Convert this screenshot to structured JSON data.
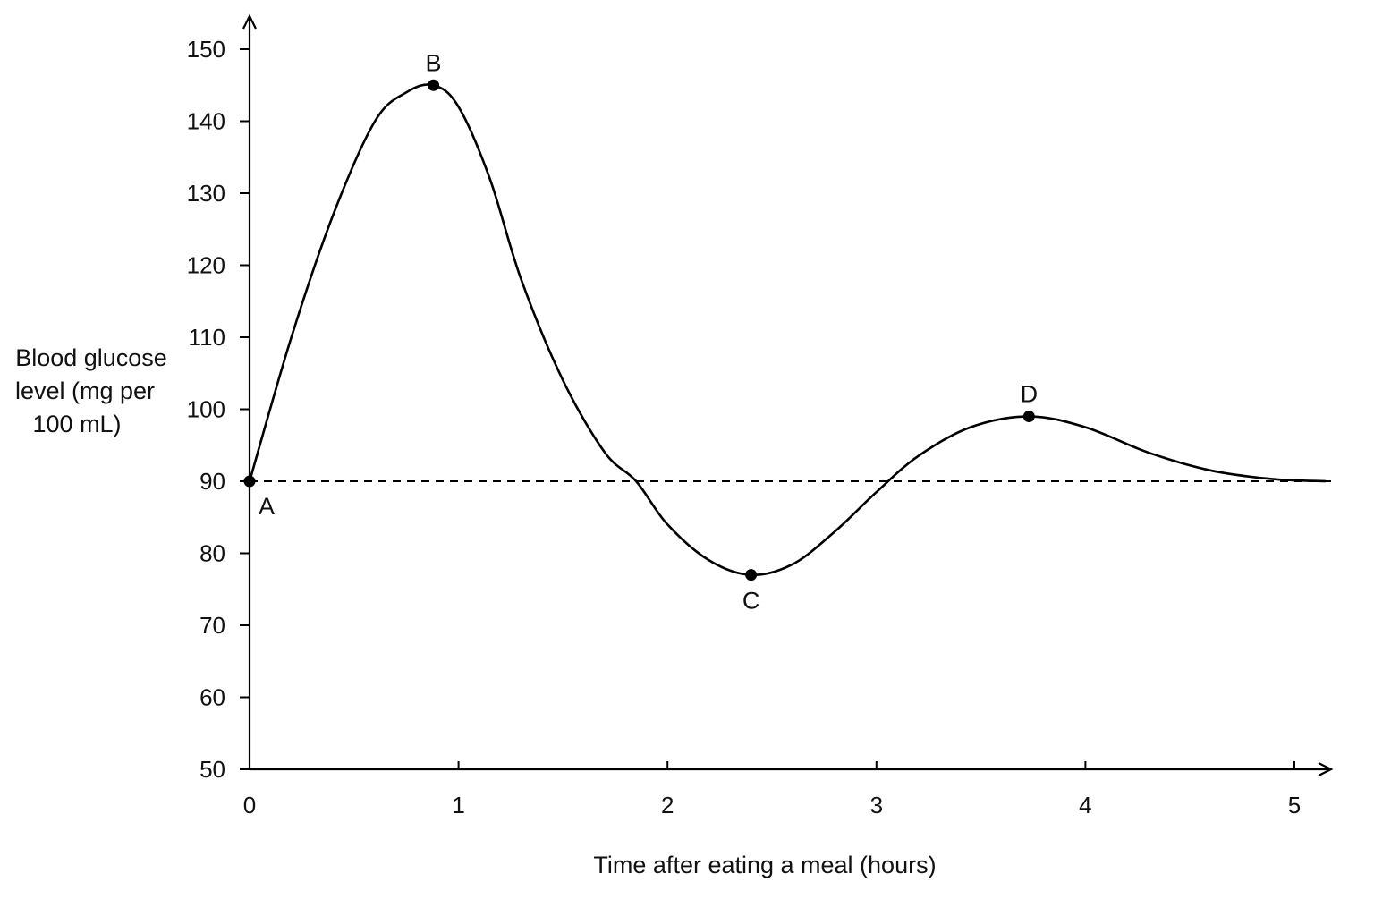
{
  "chart_data": {
    "type": "line",
    "title": "",
    "xlabel": "Time after eating a meal (hours)",
    "ylabel_lines": [
      "Blood glucose",
      "level (mg per",
      "100 mL)"
    ],
    "xlim": [
      0,
      5.15
    ],
    "ylim": [
      50,
      150
    ],
    "x_ticks": [
      "0",
      "1",
      "2",
      "3",
      "4",
      "5"
    ],
    "y_ticks": [
      "50",
      "60",
      "70",
      "80",
      "90",
      "100",
      "110",
      "120",
      "130",
      "140",
      "150"
    ],
    "grid": false,
    "legend": "none",
    "series": [
      {
        "x": [
          0,
          0.2,
          0.4,
          0.6,
          0.75,
          0.88,
          1.0,
          1.15,
          1.3,
          1.5,
          1.7,
          1.85,
          2.0,
          2.2,
          2.4,
          2.6,
          2.8,
          3.0,
          3.2,
          3.45,
          3.73,
          4.0,
          4.3,
          4.6,
          4.9,
          5.15
        ],
        "y": [
          90,
          110,
          127,
          140,
          144,
          145,
          142,
          132,
          118,
          104,
          94,
          90,
          84,
          79,
          77,
          78.5,
          83,
          88.5,
          93.5,
          97.5,
          99,
          97.5,
          94,
          91.5,
          90.3,
          90
        ],
        "color": "#000000"
      }
    ],
    "reference_line": {
      "y": 90,
      "style": "dashed",
      "x_end": 5.2
    },
    "points": [
      {
        "label": "A",
        "x": 0,
        "y": 90,
        "label_pos": "below-right"
      },
      {
        "label": "B",
        "x": 0.88,
        "y": 145,
        "label_pos": "above"
      },
      {
        "label": "C",
        "x": 2.4,
        "y": 77,
        "label_pos": "below"
      },
      {
        "label": "D",
        "x": 3.73,
        "y": 99,
        "label_pos": "above"
      }
    ]
  }
}
